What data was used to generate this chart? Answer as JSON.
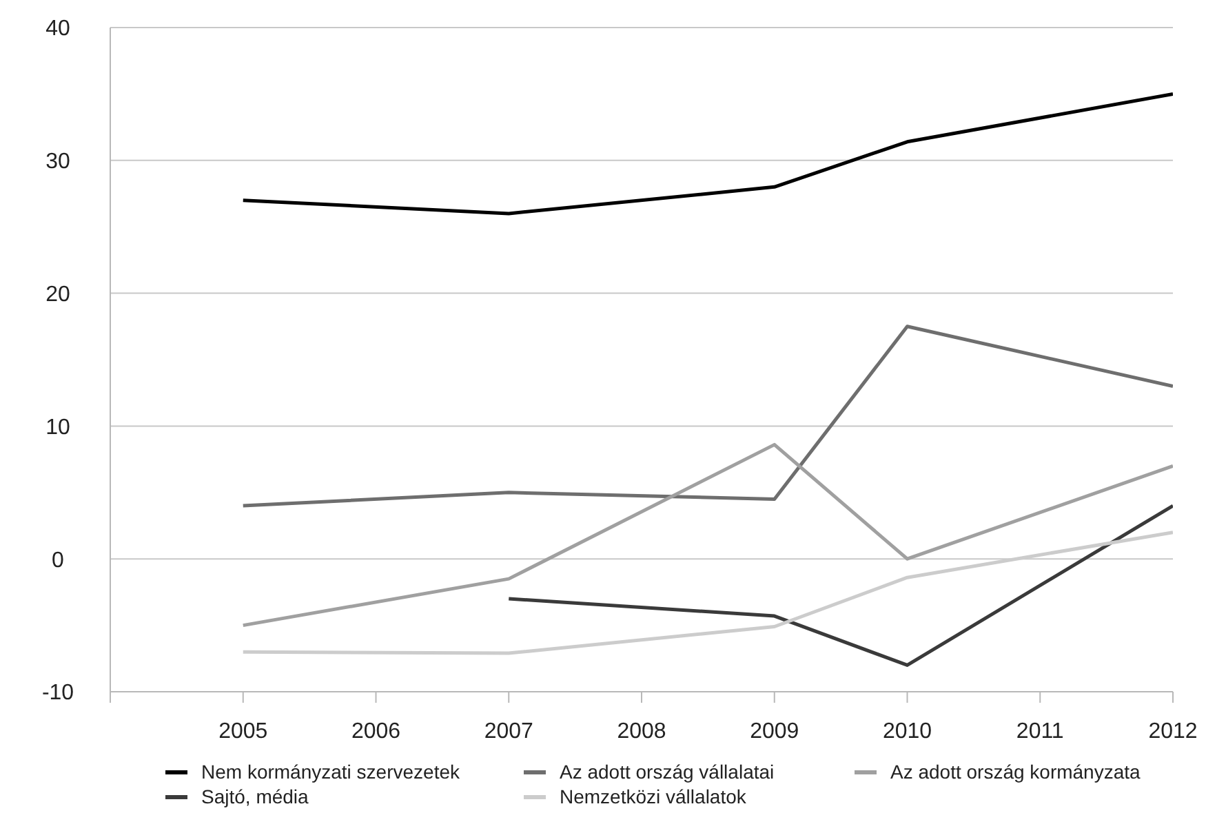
{
  "chart_data": {
    "type": "line",
    "xlim": [
      2004,
      2012
    ],
    "xticks": [
      {
        "value": 2004,
        "label": null
      },
      2005,
      2006,
      2007,
      2008,
      2009,
      2010,
      2011,
      2012
    ],
    "ylim": [
      -10,
      40
    ],
    "yticks": [
      -10,
      0,
      10,
      20,
      30,
      40
    ],
    "grid": "y",
    "legend": "bottom",
    "marker": "none",
    "line_style": "solid",
    "series": [
      {
        "name": "Nem kormányzati szervezetek",
        "color": "#000000",
        "x": [
          2005,
          2007,
          2009,
          2010,
          2012
        ],
        "values": [
          27,
          26,
          28,
          31.4,
          35
        ]
      },
      {
        "name": "Az adott ország vállalatai",
        "color": "#6e6e6e",
        "x": [
          2005,
          2007,
          2009,
          2010,
          2012
        ],
        "values": [
          4,
          5,
          4.5,
          17.5,
          13
        ]
      },
      {
        "name": "Az adott ország kormányzata",
        "color": "#a0a0a0",
        "x": [
          2005,
          2007,
          2009,
          2010,
          2012
        ],
        "values": [
          -5,
          -1.5,
          8.6,
          0,
          7
        ]
      },
      {
        "name": "Sajtó, média",
        "color": "#3a3a3a",
        "x": [
          2007,
          2009,
          2010,
          2012
        ],
        "values": [
          -3,
          -4.3,
          -8,
          4
        ]
      },
      {
        "name": "Nemzetközi vállalatok",
        "color": "#cccccc",
        "x": [
          2005,
          2007,
          2009,
          2010,
          2012
        ],
        "values": [
          -7,
          -7.1,
          -5.1,
          -1.4,
          2
        ]
      }
    ]
  }
}
